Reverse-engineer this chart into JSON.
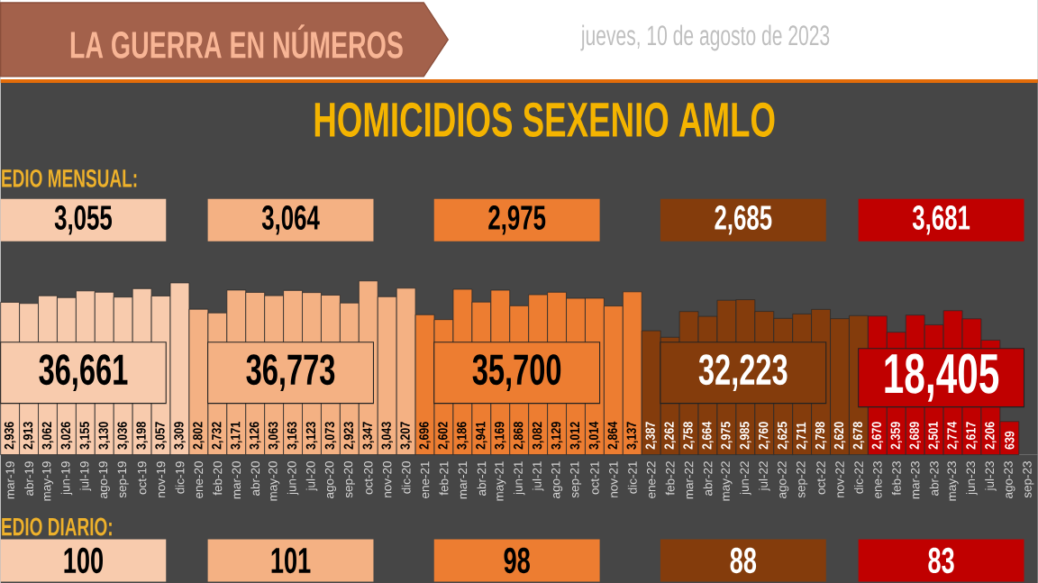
{
  "chart_data": {
    "type": "bar",
    "title": "HOMICIDIOS SEXENIO AMLO",
    "categories": [
      "mar-19",
      "abr-19",
      "may-19",
      "jun-19",
      "jul-19",
      "ago-19",
      "sep-19",
      "oct-19",
      "nov-19",
      "dic-19",
      "ene-20",
      "feb-20",
      "mar-20",
      "abr-20",
      "may-20",
      "jun-20",
      "jul-20",
      "ago-20",
      "sep-20",
      "oct-20",
      "nov-20",
      "dic-20",
      "ene-21",
      "feb-21",
      "mar-21",
      "abr-21",
      "may-21",
      "jun-21",
      "jul-21",
      "ago-21",
      "sep-21",
      "oct-21",
      "nov-21",
      "dic-21",
      "ene-22",
      "feb-22",
      "mar-22",
      "abr-22",
      "may-22",
      "jun-22",
      "jul-22",
      "ago-22",
      "sep-22",
      "oct-22",
      "nov-22",
      "dic-22",
      "ene-23",
      "feb-23",
      "mar-23",
      "abr-23",
      "may-23",
      "jun-23",
      "jul-23",
      "ago-23",
      "sep-23"
    ],
    "values": [
      2936,
      2913,
      3062,
      3026,
      3155,
      3130,
      3036,
      3198,
      3057,
      3309,
      2802,
      2732,
      3171,
      3126,
      3063,
      3163,
      3123,
      3073,
      2923,
      3347,
      3043,
      3207,
      2696,
      2602,
      3186,
      2941,
      3169,
      2868,
      3082,
      3129,
      3012,
      3014,
      2864,
      3137,
      2387,
      2262,
      2758,
      2664,
      2975,
      2985,
      2760,
      2625,
      2711,
      2798,
      2620,
      2678,
      2670,
      2359,
      2689,
      2501,
      2774,
      2617,
      2206,
      639,
      null
    ],
    "value_labels": [
      "2,936",
      "2,913",
      "3,062",
      "3,026",
      "3,155",
      "3,130",
      "3,036",
      "3,198",
      "3,057",
      "3,309",
      "2,802",
      "2,732",
      "3,171",
      "3,126",
      "3,063",
      "3,163",
      "3,123",
      "3,073",
      "2,923",
      "3,347",
      "3,043",
      "3,207",
      "2,696",
      "2,602",
      "3,186",
      "2,941",
      "3,169",
      "2,868",
      "3,082",
      "3,129",
      "3,012",
      "3,014",
      "2,864",
      "3,137",
      "2,387",
      "2,262",
      "2,758",
      "2,664",
      "2,975",
      "2,985",
      "2,760",
      "2,625",
      "2,711",
      "2,798",
      "2,620",
      "2,678",
      "2,670",
      "2,359",
      "2,689",
      "2,501",
      "2,774",
      "2,617",
      "2,206",
      "639",
      null
    ],
    "colors": [
      "#f8cbad",
      "#f8cbad",
      "#f8cbad",
      "#f8cbad",
      "#f8cbad",
      "#f8cbad",
      "#f8cbad",
      "#f8cbad",
      "#f8cbad",
      "#f8cbad",
      "#f4b183",
      "#f4b183",
      "#f4b183",
      "#f4b183",
      "#f4b183",
      "#f4b183",
      "#f4b183",
      "#f4b183",
      "#f4b183",
      "#f4b183",
      "#f4b183",
      "#f4b183",
      "#ed7d31",
      "#ed7d31",
      "#ed7d31",
      "#ed7d31",
      "#ed7d31",
      "#ed7d31",
      "#ed7d31",
      "#ed7d31",
      "#ed7d31",
      "#ed7d31",
      "#ed7d31",
      "#ed7d31",
      "#843c0c",
      "#843c0c",
      "#843c0c",
      "#843c0c",
      "#843c0c",
      "#843c0c",
      "#843c0c",
      "#843c0c",
      "#843c0c",
      "#843c0c",
      "#843c0c",
      "#843c0c",
      "#c00000",
      "#c00000",
      "#c00000",
      "#c00000",
      "#c00000",
      "#c00000",
      "#c00000",
      "#c00000",
      null
    ],
    "annotations": [
      "LA GUERRA EN NÚMEROS",
      "jueves, 10 de agosto de 2023",
      "EDIO MENSUAL:",
      "3,055",
      "3,064",
      "2,975",
      "2,685",
      "3,681",
      "36,661",
      "36,773",
      "35,700",
      "32,223",
      "18,405",
      "EDIO DIARIO:",
      "100",
      "101",
      "98",
      "88",
      "83"
    ],
    "tick_labels": "x"
  }
}
